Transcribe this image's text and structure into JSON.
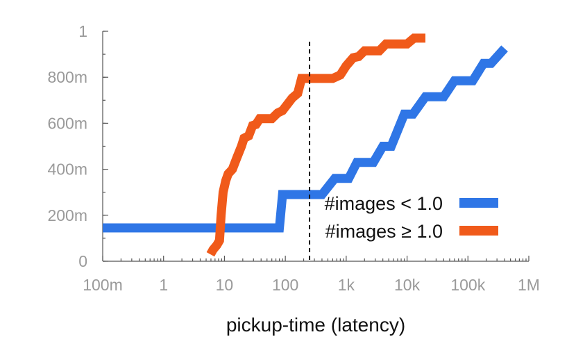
{
  "chart_data": {
    "type": "line",
    "title": "",
    "xlabel": "pickup-time (latency)",
    "ylabel": "",
    "x_scale": "log",
    "xlim": [
      0.1,
      1000000
    ],
    "ylim": [
      0,
      1
    ],
    "x_ticks": [
      {
        "value": 0.1,
        "label": "100m"
      },
      {
        "value": 1,
        "label": "1"
      },
      {
        "value": 10,
        "label": "10"
      },
      {
        "value": 100,
        "label": "100"
      },
      {
        "value": 1000,
        "label": "1k"
      },
      {
        "value": 10000,
        "label": "10k"
      },
      {
        "value": 100000,
        "label": "100k"
      },
      {
        "value": 1000000,
        "label": "1M"
      }
    ],
    "y_ticks": [
      {
        "value": 0,
        "label": "0"
      },
      {
        "value": 0.2,
        "label": "200m"
      },
      {
        "value": 0.4,
        "label": "400m"
      },
      {
        "value": 0.6,
        "label": "600m"
      },
      {
        "value": 0.8,
        "label": "800m"
      },
      {
        "value": 1,
        "label": "1"
      }
    ],
    "grid": false,
    "legend_position": "bottom-right",
    "reference_line": {
      "x": 250,
      "style": "dashed",
      "color": "#111111"
    },
    "series": [
      {
        "name": "#images < 1.0",
        "color": "#2f76e6",
        "points": [
          [
            0.1,
            0.145
          ],
          [
            80,
            0.145
          ],
          [
            90,
            0.29
          ],
          [
            400,
            0.29
          ],
          [
            650,
            0.36
          ],
          [
            1100,
            0.36
          ],
          [
            1500,
            0.43
          ],
          [
            2800,
            0.43
          ],
          [
            4000,
            0.5
          ],
          [
            5500,
            0.5
          ],
          [
            9000,
            0.64
          ],
          [
            12500,
            0.64
          ],
          [
            20000,
            0.715
          ],
          [
            40000,
            0.715
          ],
          [
            60000,
            0.785
          ],
          [
            120000,
            0.785
          ],
          [
            180000,
            0.86
          ],
          [
            240000,
            0.86
          ],
          [
            400000,
            0.925
          ]
        ]
      },
      {
        "name": "#images ≥ 1.0",
        "color": "#f05a1a",
        "points": [
          [
            5.9,
            0.03
          ],
          [
            6.5,
            0.05
          ],
          [
            7.5,
            0.07
          ],
          [
            8.3,
            0.09
          ],
          [
            8.8,
            0.2
          ],
          [
            9.5,
            0.3
          ],
          [
            10.5,
            0.35
          ],
          [
            11.5,
            0.38
          ],
          [
            13.5,
            0.4
          ],
          [
            16,
            0.45
          ],
          [
            19,
            0.5
          ],
          [
            21,
            0.535
          ],
          [
            25,
            0.545
          ],
          [
            29,
            0.59
          ],
          [
            33,
            0.595
          ],
          [
            38,
            0.62
          ],
          [
            60,
            0.62
          ],
          [
            75,
            0.645
          ],
          [
            90,
            0.655
          ],
          [
            130,
            0.71
          ],
          [
            160,
            0.73
          ],
          [
            185,
            0.795
          ],
          [
            600,
            0.795
          ],
          [
            800,
            0.81
          ],
          [
            1000,
            0.85
          ],
          [
            1300,
            0.885
          ],
          [
            1600,
            0.89
          ],
          [
            2000,
            0.915
          ],
          [
            3500,
            0.915
          ],
          [
            4500,
            0.945
          ],
          [
            10000,
            0.945
          ],
          [
            13000,
            0.97
          ],
          [
            20000,
            0.97
          ]
        ]
      }
    ]
  }
}
